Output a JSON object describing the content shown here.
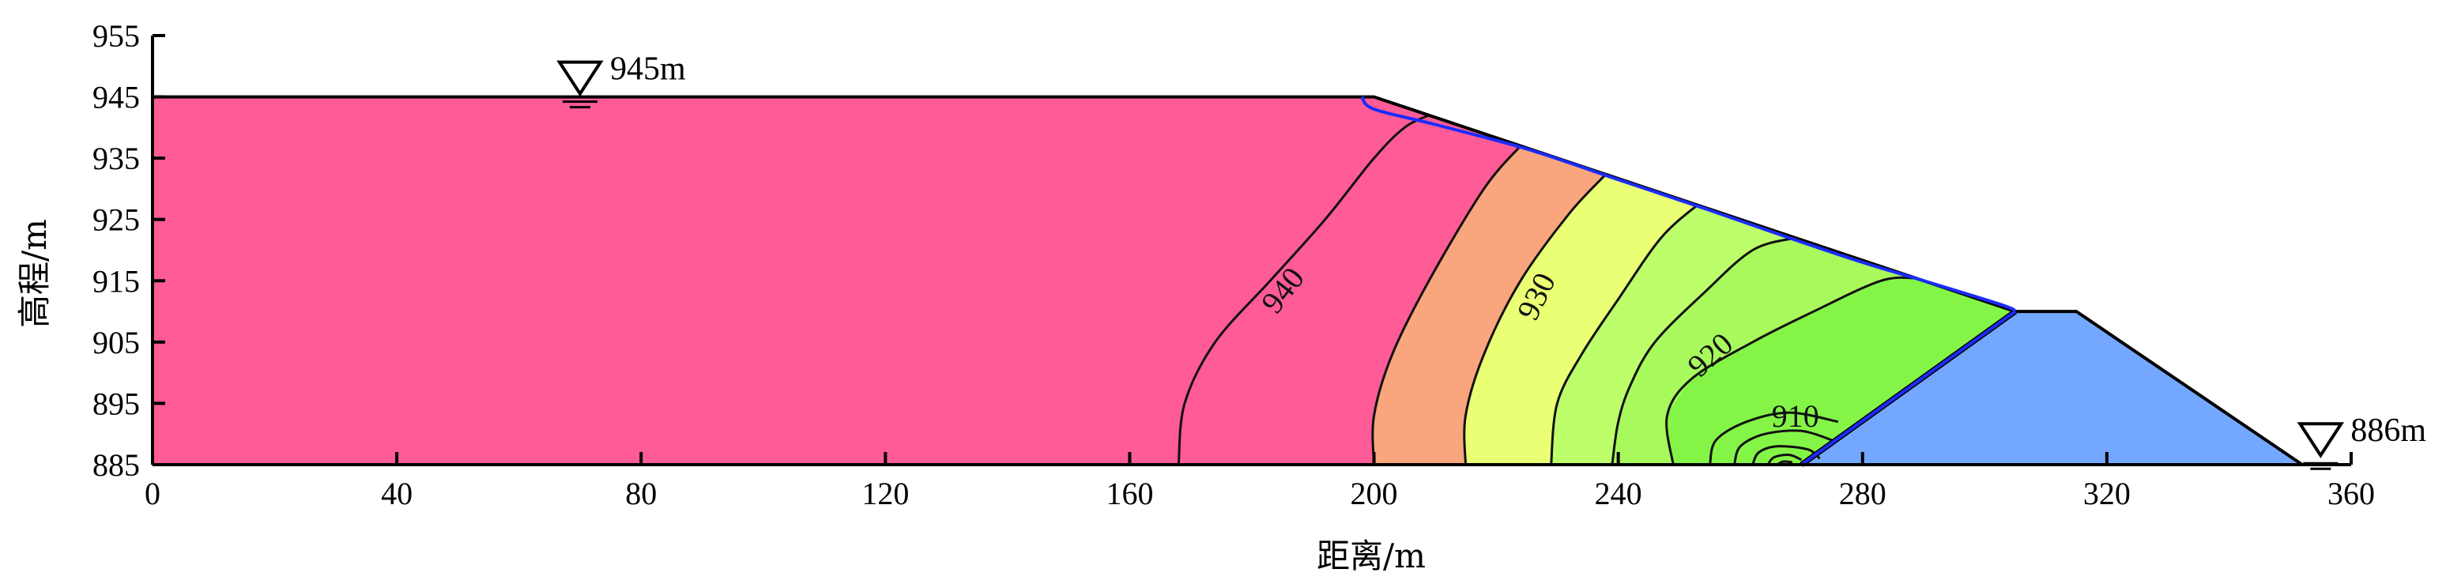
{
  "chart_data": {
    "type": "filled-contour",
    "xlabel": "距离/m",
    "ylabel": "高程/m",
    "xlim": [
      0,
      360
    ],
    "ylim": [
      885,
      955
    ],
    "x_ticks": [
      0,
      40,
      80,
      120,
      160,
      200,
      240,
      280,
      320,
      360
    ],
    "y_ticks": [
      885,
      895,
      905,
      915,
      925,
      935,
      945,
      955
    ],
    "grid": false,
    "water_levels": [
      {
        "label": "945m",
        "x": 70,
        "elevation": 945
      },
      {
        "label": "886m",
        "x": 355,
        "elevation": 886
      }
    ],
    "embankment_outline": [
      [
        0,
        945
      ],
      [
        200,
        945
      ],
      [
        305,
        910
      ],
      [
        315,
        910
      ],
      [
        352,
        885
      ],
      [
        360,
        885
      ]
    ],
    "toe_drain": [
      [
        270,
        885
      ],
      [
        305,
        910
      ],
      [
        315,
        910
      ],
      [
        352,
        885
      ]
    ],
    "phreatic_line": [
      [
        198,
        945
      ],
      [
        200,
        943
      ],
      [
        210,
        940.5
      ],
      [
        225,
        936.5
      ],
      [
        240,
        931.5
      ],
      [
        255,
        926.5
      ],
      [
        268,
        922
      ],
      [
        280,
        918
      ],
      [
        290,
        915
      ],
      [
        303,
        911
      ],
      [
        305,
        910
      ],
      [
        270,
        885
      ],
      [
        352,
        885
      ],
      [
        360,
        885
      ]
    ],
    "contour_labels": [
      {
        "text": "940",
        "x": 185,
        "y": 913.5,
        "angle": -52
      },
      {
        "text": "930",
        "x": 226.5,
        "y": 912.5,
        "angle": -64
      },
      {
        "text": "920",
        "x": 255,
        "y": 903,
        "angle": -42
      },
      {
        "text": "910",
        "x": 269,
        "y": 893,
        "angle": 0
      }
    ],
    "regions": [
      {
        "color": "#FF5B97",
        "polygon": [
          [
            0,
            945
          ],
          [
            200,
            945
          ],
          [
            209,
            942
          ],
          [
            205,
            940
          ],
          [
            200,
            935
          ],
          [
            192,
            925
          ],
          [
            183,
            915
          ],
          [
            174,
            905
          ],
          [
            169,
            895
          ],
          [
            168,
            885
          ],
          [
            0,
            885
          ]
        ]
      },
      {
        "color": "#FF5B97",
        "polygon": [
          [
            168,
            885
          ],
          [
            169,
            895
          ],
          [
            174,
            905
          ],
          [
            183,
            915
          ],
          [
            192,
            925
          ],
          [
            200,
            935
          ],
          [
            205,
            940
          ],
          [
            209,
            942
          ],
          [
            224,
            937
          ],
          [
            218,
            930
          ],
          [
            209,
            915
          ],
          [
            203,
            903
          ],
          [
            200,
            893
          ],
          [
            200,
            885
          ]
        ]
      },
      {
        "color": "#F9A57D",
        "polygon": [
          [
            200,
            885
          ],
          [
            200,
            893
          ],
          [
            203,
            903
          ],
          [
            209,
            915
          ],
          [
            218,
            930
          ],
          [
            224,
            937
          ],
          [
            238,
            932.4
          ],
          [
            232,
            926
          ],
          [
            224,
            915
          ],
          [
            218,
            903
          ],
          [
            215,
            893
          ],
          [
            215,
            885
          ]
        ]
      },
      {
        "color": "#EAFF73",
        "polygon": [
          [
            215,
            885
          ],
          [
            215,
            893
          ],
          [
            218,
            903
          ],
          [
            224,
            915
          ],
          [
            232,
            926
          ],
          [
            238,
            932.4
          ],
          [
            253,
            927.4
          ],
          [
            247,
            922
          ],
          [
            240,
            912
          ],
          [
            234,
            903
          ],
          [
            230,
            895
          ],
          [
            229,
            885
          ]
        ]
      },
      {
        "color": "#BDFF6B",
        "polygon": [
          [
            229,
            885
          ],
          [
            230,
            895
          ],
          [
            234,
            903
          ],
          [
            240,
            912
          ],
          [
            247,
            922
          ],
          [
            253,
            927.4
          ],
          [
            269,
            922
          ],
          [
            262,
            920
          ],
          [
            254,
            913
          ],
          [
            246,
            905
          ],
          [
            242,
            898
          ],
          [
            240,
            892
          ],
          [
            239,
            885
          ]
        ]
      },
      {
        "color": "#A8F95C",
        "polygon": [
          [
            239,
            885
          ],
          [
            240,
            892
          ],
          [
            242,
            898
          ],
          [
            246,
            905
          ],
          [
            254,
            913
          ],
          [
            262,
            920
          ],
          [
            269,
            922
          ],
          [
            289,
            915.4
          ],
          [
            283,
            915
          ],
          [
            272,
            910
          ],
          [
            262,
            905
          ],
          [
            252,
            899
          ],
          [
            248,
            893
          ],
          [
            249,
            885
          ]
        ]
      },
      {
        "color": "#84F547",
        "polygon": [
          [
            249,
            885
          ],
          [
            248,
            893
          ],
          [
            252,
            899
          ],
          [
            262,
            905
          ],
          [
            272,
            910
          ],
          [
            283,
            915
          ],
          [
            289,
            915.4
          ],
          [
            305,
            910
          ],
          [
            270,
            885
          ]
        ]
      },
      {
        "color": "#74A7FF",
        "polygon": [
          [
            270,
            885
          ],
          [
            305,
            910
          ],
          [
            315,
            910
          ],
          [
            352,
            885
          ]
        ]
      }
    ],
    "contour_lines": [
      [
        [
          168,
          885
        ],
        [
          169,
          895
        ],
        [
          174,
          905
        ],
        [
          183,
          915
        ],
        [
          192,
          925
        ],
        [
          200,
          935
        ],
        [
          205,
          940
        ],
        [
          209,
          942
        ]
      ],
      [
        [
          200,
          885
        ],
        [
          200,
          893
        ],
        [
          203,
          903
        ],
        [
          209,
          915
        ],
        [
          218,
          930
        ],
        [
          224,
          937
        ]
      ],
      [
        [
          215,
          885
        ],
        [
          215,
          893
        ],
        [
          218,
          903
        ],
        [
          224,
          915
        ],
        [
          232,
          926
        ],
        [
          238,
          932.4
        ]
      ],
      [
        [
          229,
          885
        ],
        [
          230,
          895
        ],
        [
          234,
          903
        ],
        [
          240,
          912
        ],
        [
          247,
          922
        ],
        [
          253,
          927.4
        ]
      ],
      [
        [
          239,
          885
        ],
        [
          240,
          892
        ],
        [
          242,
          898
        ],
        [
          246,
          905
        ],
        [
          254,
          913
        ],
        [
          262,
          920
        ],
        [
          269,
          922
        ]
      ],
      [
        [
          249,
          885
        ],
        [
          248,
          893
        ],
        [
          252,
          899
        ],
        [
          262,
          905
        ],
        [
          272,
          910
        ],
        [
          283,
          915
        ],
        [
          289,
          915.4
        ]
      ],
      [
        [
          255,
          885
        ],
        [
          256,
          889
        ],
        [
          261,
          892
        ],
        [
          268,
          893.5
        ],
        [
          276,
          892
        ]
      ],
      [
        [
          259,
          885
        ],
        [
          260,
          888
        ],
        [
          264,
          890
        ],
        [
          270,
          890.5
        ],
        [
          275,
          889
        ]
      ],
      [
        [
          262,
          885
        ],
        [
          263,
          887
        ],
        [
          266,
          888
        ],
        [
          271,
          887.5
        ],
        [
          273,
          886
        ]
      ],
      [
        [
          264.5,
          885
        ],
        [
          265.5,
          886.2
        ],
        [
          268,
          886.6
        ],
        [
          270,
          885.8
        ]
      ],
      [
        [
          266,
          885
        ],
        [
          267,
          885.5
        ],
        [
          268.5,
          885.4
        ]
      ]
    ],
    "colors": {
      "axis": "#000000",
      "outline": "#000000",
      "phreatic": "#1A2CFF",
      "contour": "#111111"
    }
  }
}
